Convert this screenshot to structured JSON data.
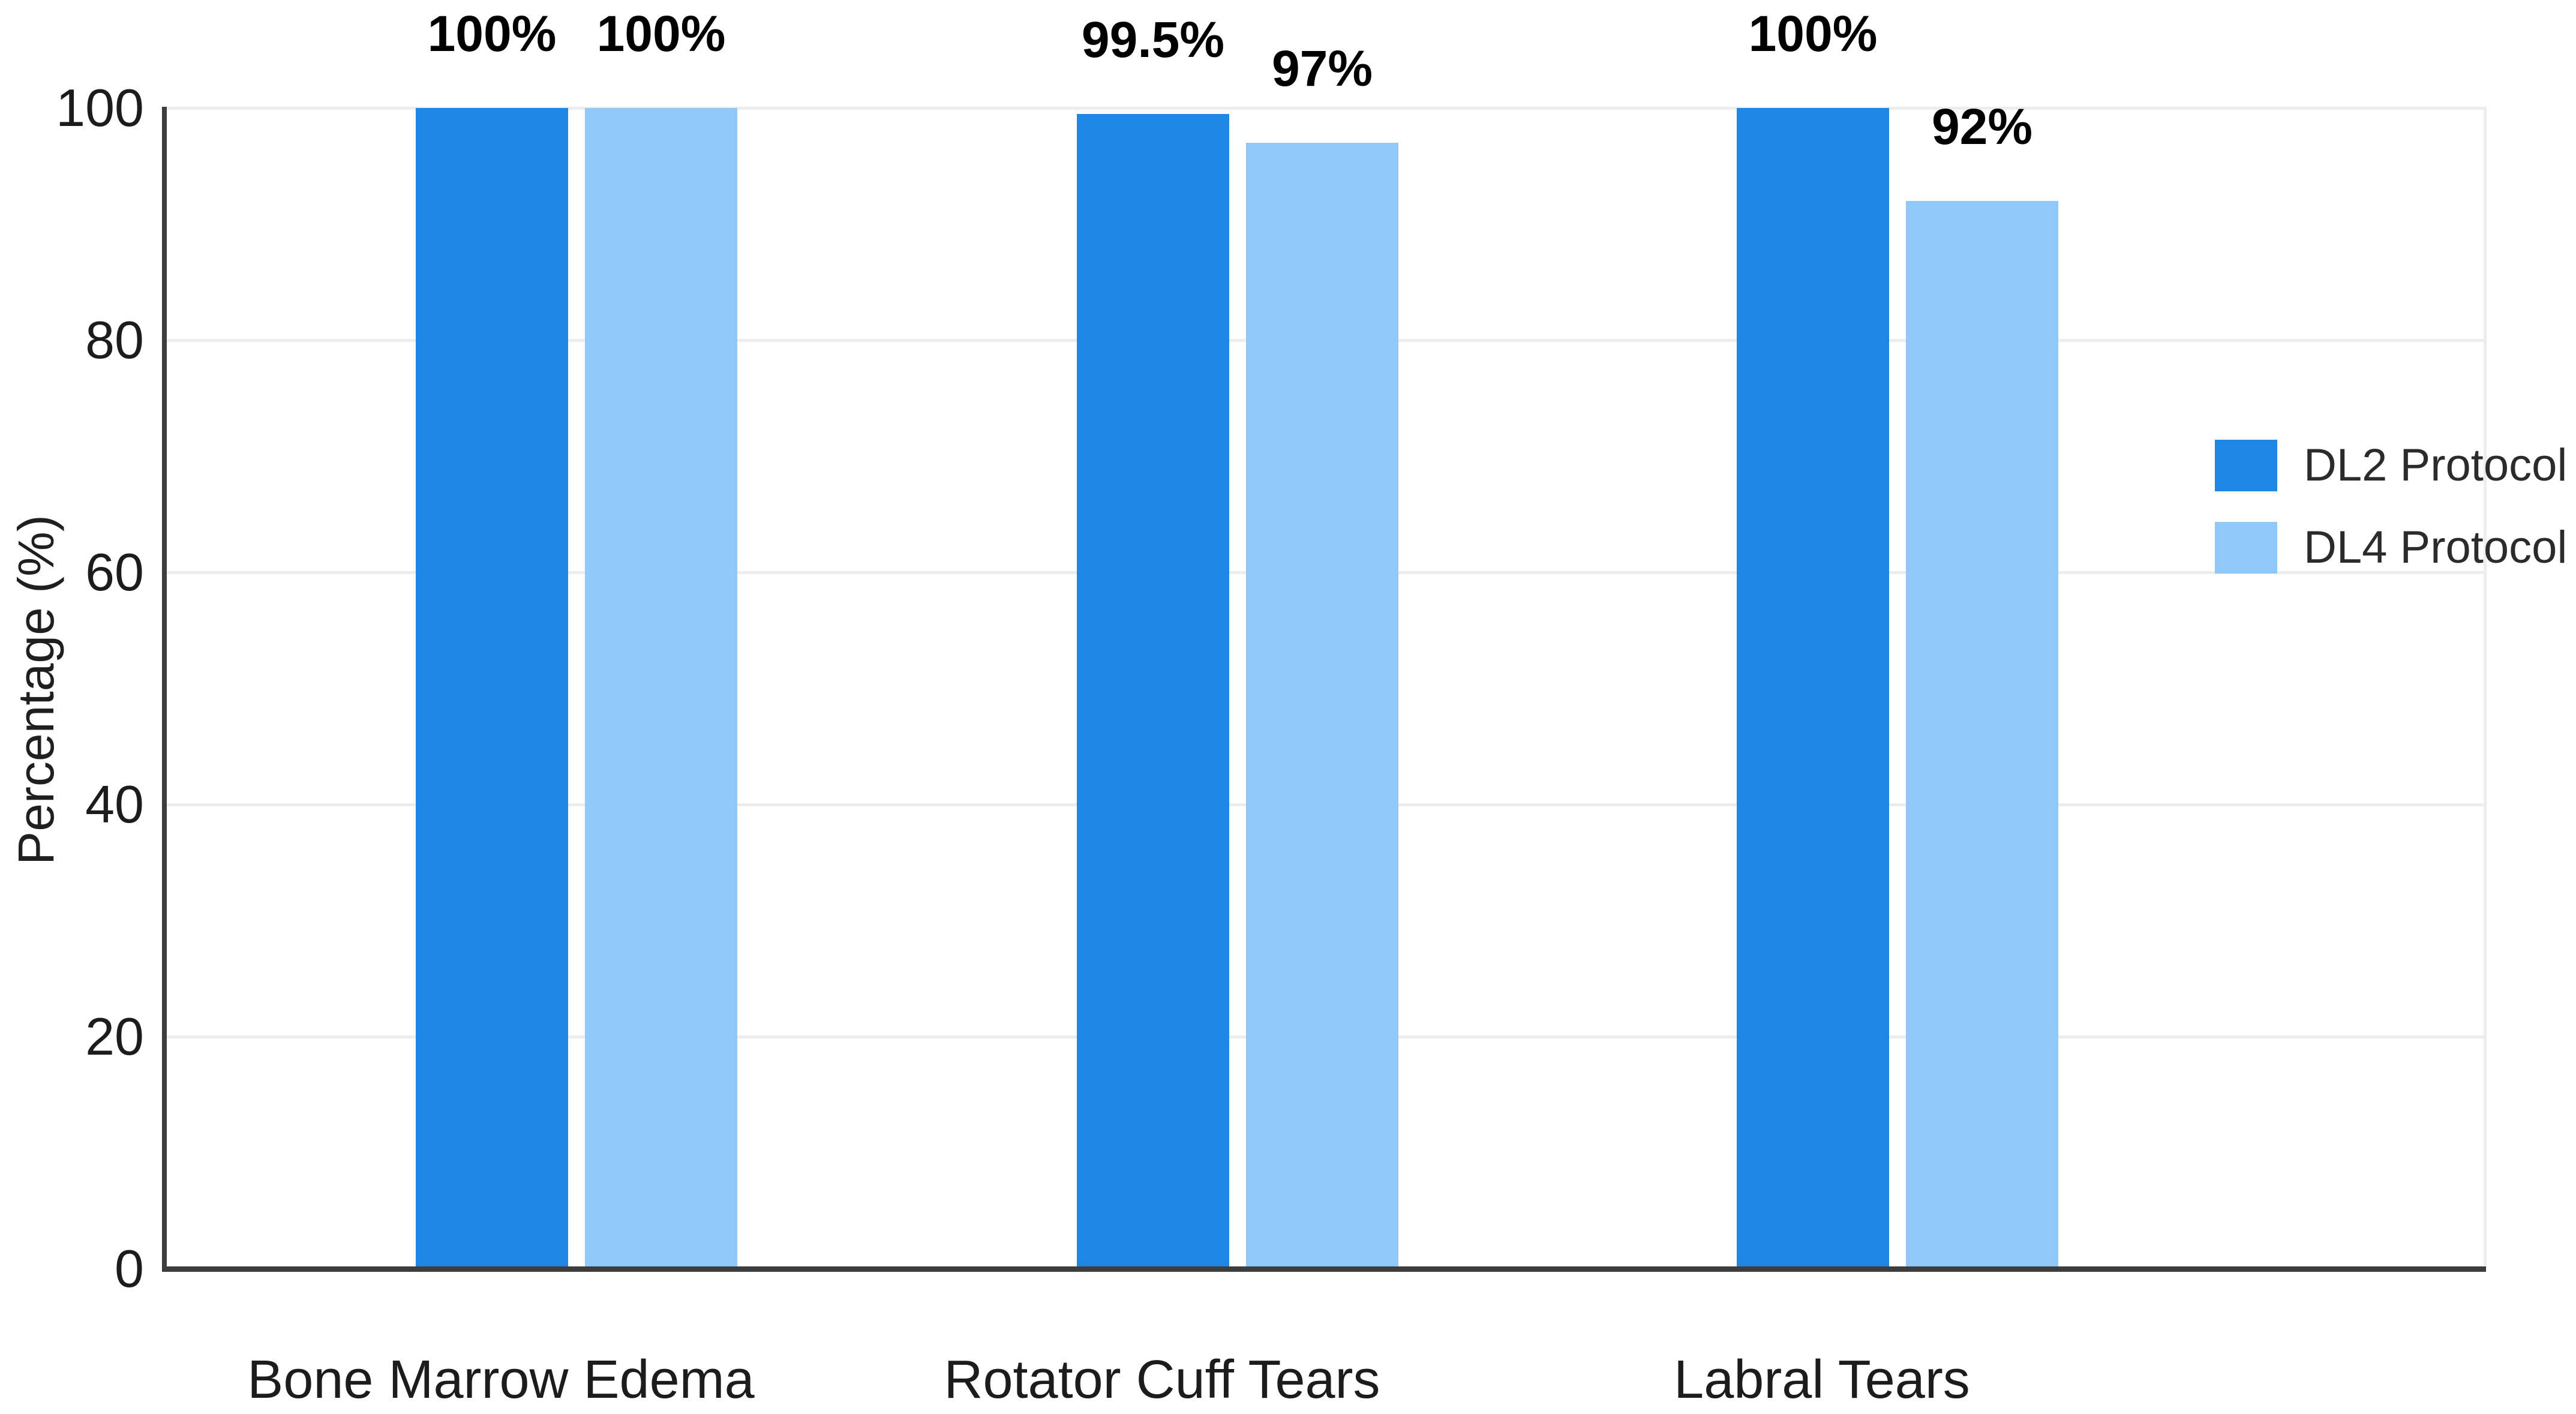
{
  "figure": {
    "background": "#FFFFFF"
  },
  "chart_data": {
    "type": "bar",
    "categories": [
      "Bone Marrow Edema",
      "Rotator Cuff Tears",
      "Labral Tears"
    ],
    "series": [
      {
        "name": "DL2 Protocol",
        "color": "#1E86E5",
        "values": [
          100,
          99.5,
          100
        ],
        "value_labels": [
          "100%",
          "99.5%",
          "100%"
        ]
      },
      {
        "name": "DL4 Protocol",
        "color": "#90C9F9",
        "values": [
          100,
          97,
          92
        ],
        "value_labels": [
          "100%",
          "97%",
          "92%"
        ]
      }
    ],
    "ylabel": "Percentage (%)",
    "yticks": [
      0,
      20,
      40,
      60,
      80,
      100
    ],
    "ylim": [
      0,
      100
    ],
    "grid": true,
    "legend_position": "center-right",
    "colors": {
      "axis": "#3D3D3D",
      "grid": "#EDEDED",
      "plot_border": "#EDEDED",
      "tick_text": "#1C1C1C",
      "data_label_text": "#000000",
      "legend_text": "#2B2B2B"
    }
  }
}
